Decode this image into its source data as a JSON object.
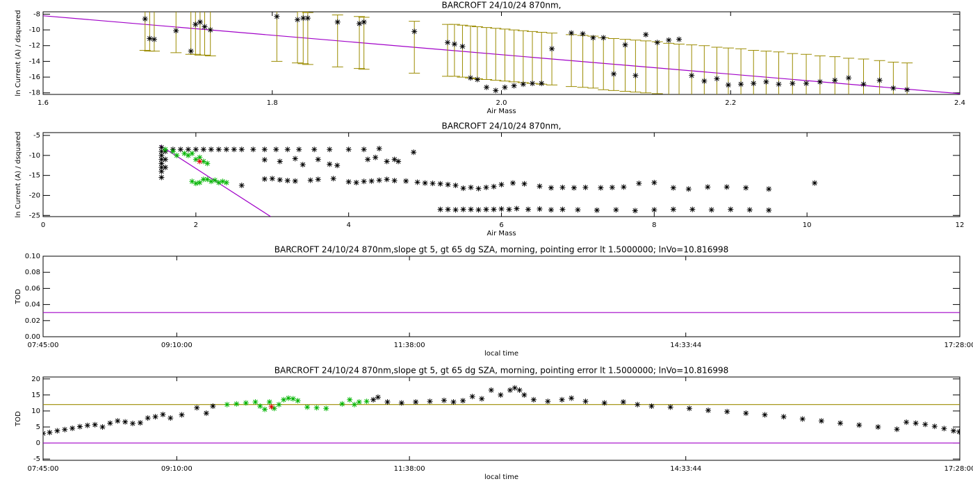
{
  "chart_data": [
    {
      "type": "scatter",
      "title": "BARCROFT 24/10/24 870nm,",
      "xlabel": "Air Mass",
      "ylabel": "ln Current (A) / dsquared",
      "xlim": [
        1.6,
        2.4
      ],
      "ylim": [
        -18.2,
        -7.7
      ],
      "xticks": [
        1.6,
        1.8,
        {
          "value": 2,
          "label": "2.0"
        },
        2.2,
        2.4
      ],
      "yticks": [
        -8,
        -10,
        -12,
        -14,
        -16,
        -18
      ],
      "series": [
        {
          "color": "#000000",
          "marker": "asterisk",
          "x": [
            1.689,
            1.693,
            1.697,
            1.716,
            1.729,
            1.733,
            1.737,
            1.741,
            1.746,
            1.804,
            1.822,
            1.827,
            1.831,
            1.857,
            1.876,
            1.88,
            1.924,
            1.953,
            1.959,
            1.966,
            1.973,
            1.979,
            1.987,
            1.995,
            2.003,
            2.011,
            2.019,
            2.027,
            2.035,
            2.044,
            2.061,
            2.071,
            2.08,
            2.089,
            2.098,
            2.108,
            2.117,
            2.126,
            2.136,
            2.146,
            2.155,
            2.166,
            2.177,
            2.188,
            2.198,
            2.209,
            2.22,
            2.231,
            2.242,
            2.254,
            2.266,
            2.278,
            2.291,
            2.303,
            2.316,
            2.33,
            2.342,
            2.354
          ],
          "values": [
            -8.6,
            -11.1,
            -11.2,
            -10.1,
            -12.7,
            -9.3,
            -9.0,
            -9.6,
            -10.0,
            -8.3,
            -8.7,
            -8.5,
            -8.5,
            -9.0,
            -9.2,
            -9.0,
            -10.2,
            -11.6,
            -11.8,
            -12.1,
            -16.1,
            -16.3,
            -17.3,
            -17.7,
            -17.3,
            -17.1,
            -16.9,
            -16.8,
            -16.8,
            -12.4,
            -10.4,
            -10.5,
            -11.0,
            -11.0,
            -15.6,
            -11.9,
            -15.8,
            -10.6,
            -11.6,
            -11.3,
            -11.2,
            -15.8,
            -16.5,
            -16.2,
            -17.0,
            -16.9,
            -16.8,
            -16.6,
            -16.9,
            -16.8,
            -16.8,
            -16.6,
            -16.4,
            -16.1,
            -16.9,
            -16.4,
            -17.4,
            -17.6
          ]
        }
      ],
      "error_bars": {
        "color": "#9b8b00",
        "centers": [
          -9.3,
          -9.4,
          -9.4,
          -9.6,
          -9.8,
          -9.8,
          -9.9,
          -9.9,
          -10.0,
          -10.7,
          -10.9,
          -11.0,
          -11.1,
          -11.4,
          -11.6,
          -11.7,
          -12.2,
          -12.6,
          -12.6,
          -12.7,
          -12.8,
          -12.9,
          -13.0,
          -13.1,
          -13.2,
          -13.3,
          -13.4,
          -13.5,
          -13.6,
          -13.7,
          -13.9,
          -14.0,
          -14.1,
          -14.3,
          -14.4,
          -14.5,
          -14.6,
          -14.7,
          -14.8,
          -15.0,
          -15.1,
          -15.2,
          -15.3,
          -15.5,
          -15.6,
          -15.7,
          -15.9,
          -16.0,
          -16.1,
          -16.3,
          -16.4,
          -16.6,
          -16.7,
          -16.9,
          -17.0,
          -17.2,
          -17.4,
          -17.5
        ],
        "errors": [
          3.3,
          3.3,
          3.3,
          3.3,
          3.3,
          3.3,
          3.3,
          3.3,
          3.3,
          3.3,
          3.3,
          3.3,
          3.3,
          3.3,
          3.3,
          3.3,
          3.3,
          3.3,
          3.3,
          3.3,
          3.3,
          3.3,
          3.3,
          3.3,
          3.3,
          3.3,
          3.3,
          3.3,
          3.3,
          3.3,
          3.3,
          3.3,
          3.3,
          3.3,
          3.3,
          3.3,
          3.3,
          3.3,
          3.3,
          3.3,
          3.3,
          3.3,
          3.3,
          3.3,
          3.3,
          3.3,
          3.3,
          3.3,
          3.3,
          3.3,
          3.3,
          3.3,
          3.3,
          3.3,
          3.3,
          3.3,
          3.3,
          3.3
        ]
      },
      "lines": [
        {
          "color": "#a000c8",
          "x": [
            1.6,
            2.4
          ],
          "values": [
            -8.2,
            -18.1
          ]
        }
      ]
    },
    {
      "type": "scatter",
      "title": "BARCROFT 24/10/24 870nm,",
      "xlabel": "Air Mass",
      "ylabel": "ln Current (A) / dsquared",
      "xlim": [
        0,
        12
      ],
      "ylim": [
        -25.3,
        -4.3
      ],
      "xticks": [
        0,
        2,
        4,
        6,
        8,
        10,
        12
      ],
      "yticks": [
        -5,
        -10,
        -15,
        -20,
        -25
      ],
      "series": [
        {
          "color": "#000000",
          "marker": "asterisk",
          "x": [
            1.55,
            1.55,
            1.55,
            1.55,
            1.55,
            1.55,
            1.55,
            1.55,
            1.6,
            1.6,
            1.6,
            1.7,
            1.8,
            1.9,
            2.0,
            2.1,
            2.2,
            2.3,
            2.4,
            2.5,
            2.6,
            2.75,
            2.9,
            3.05,
            3.2,
            3.35,
            3.55,
            3.75,
            4.0,
            4.2,
            4.4,
            4.85,
            2.9,
            3.1,
            3.3,
            3.4,
            3.6,
            3.75,
            3.85,
            4.25,
            4.35,
            4.5,
            4.6,
            4.65,
            2.6,
            2.9,
            3.0,
            3.1,
            3.2,
            3.3,
            3.5,
            3.6,
            3.8,
            4.0,
            4.1,
            4.2,
            4.3,
            4.4,
            4.5,
            4.6,
            4.75,
            4.9,
            5.0,
            5.1,
            5.2,
            5.3,
            5.4,
            5.5,
            5.6,
            5.7,
            5.8,
            5.9,
            6.0,
            6.15,
            6.3,
            6.5,
            6.65,
            6.8,
            6.95,
            7.1,
            7.3,
            7.45,
            7.6,
            7.8,
            8.0,
            8.25,
            8.45,
            8.7,
            8.95,
            9.2,
            9.5,
            10.1,
            5.2,
            5.3,
            5.4,
            5.5,
            5.6,
            5.7,
            5.8,
            5.9,
            6.0,
            6.1,
            6.2,
            6.35,
            6.5,
            6.65,
            6.8,
            7.0,
            7.25,
            7.5,
            7.75,
            8.0,
            8.25,
            8.5,
            8.75,
            9.0,
            9.25,
            9.5
          ],
          "values": [
            -8,
            -9,
            -10,
            -11,
            -12,
            -13,
            -14,
            -15.5,
            -9,
            -11,
            -13,
            -8.5,
            -8.5,
            -8.5,
            -8.5,
            -8.5,
            -8.5,
            -8.5,
            -8.5,
            -8.5,
            -8.5,
            -8.5,
            -8.5,
            -8.5,
            -8.5,
            -8.5,
            -8.5,
            -8.5,
            -8.5,
            -8.5,
            -8.3,
            -9.2,
            -11.1,
            -11.5,
            -10.8,
            -12.3,
            -11.0,
            -12.2,
            -12.5,
            -11.0,
            -10.5,
            -11.5,
            -11.0,
            -11.5,
            -17.5,
            -15.9,
            -15.8,
            -16.1,
            -16.3,
            -16.4,
            -16.2,
            -16.0,
            -15.8,
            -16.6,
            -16.8,
            -16.5,
            -16.4,
            -16.2,
            -16.0,
            -16.3,
            -16.4,
            -16.7,
            -16.9,
            -17.0,
            -17.1,
            -17.3,
            -17.5,
            -18.2,
            -18.0,
            -18.3,
            -18.0,
            -17.8,
            -17.3,
            -16.9,
            -17.1,
            -17.7,
            -18.1,
            -18.0,
            -18.1,
            -18.0,
            -18.1,
            -18.0,
            -17.9,
            -17.0,
            -16.8,
            -18.1,
            -18.4,
            -17.9,
            -17.9,
            -18.1,
            -18.4,
            -16.9,
            -23.5,
            -23.5,
            -23.6,
            -23.5,
            -23.5,
            -23.6,
            -23.5,
            -23.5,
            -23.4,
            -23.5,
            -23.3,
            -23.5,
            -23.4,
            -23.6,
            -23.5,
            -23.6,
            -23.7,
            -23.6,
            -23.8,
            -23.6,
            -23.5,
            -23.5,
            -23.6,
            -23.5,
            -23.6,
            -23.7
          ]
        },
        {
          "color": "#00b400",
          "marker": "asterisk",
          "x": [
            1.6,
            1.7,
            1.75,
            1.85,
            1.9,
            1.95,
            1.95,
            2.0,
            2.0,
            2.05,
            2.05,
            2.1,
            2.1,
            2.15,
            2.15,
            2.2,
            2.25,
            2.3,
            2.35,
            2.4
          ],
          "values": [
            -8.5,
            -9.0,
            -10.0,
            -9.5,
            -10.0,
            -9.5,
            -16.5,
            -17.0,
            -11.0,
            -16.8,
            -10.5,
            -11.5,
            -16.0,
            -12.0,
            -16.0,
            -16.5,
            -16.2,
            -16.8,
            -16.5,
            -16.8
          ]
        },
        {
          "color": "#e00000",
          "marker": "asterisk",
          "x": [
            2.05
          ],
          "values": [
            -11.5
          ]
        }
      ],
      "lines": [
        {
          "color": "#a000c8",
          "x": [
            1.53,
            2.98
          ],
          "values": [
            -7.5,
            -25.3
          ]
        }
      ]
    },
    {
      "type": "line",
      "title": "BARCROFT 24/10/24 870nm,slope gt 5, gt 65 dg SZA, morning, pointing error lt 1.5000000; lnVo=10.816998",
      "xlabel": "local time",
      "ylabel": "TOD",
      "xlim": [
        7.75,
        17.4667
      ],
      "ylim": [
        0,
        0.1
      ],
      "xticks": [
        {
          "value": 7.75,
          "label": "07:45:00"
        },
        {
          "value": 9.1667,
          "label": "09:10:00"
        },
        {
          "value": 11.6333,
          "label": "11:38:00"
        },
        {
          "value": 14.5622,
          "label": "14:33:44"
        },
        {
          "value": 17.4667,
          "label": "17:28:00"
        }
      ],
      "yticks": [
        {
          "value": 0,
          "label": "0.00"
        },
        {
          "value": 0.02,
          "label": "0.02"
        },
        {
          "value": 0.04,
          "label": "0.04"
        },
        {
          "value": 0.06,
          "label": "0.06"
        },
        {
          "value": 0.08,
          "label": "0.08"
        },
        {
          "value": 0.1,
          "label": "0.10"
        }
      ],
      "lines": [
        {
          "color": "#a000c8",
          "x": [
            7.75,
            17.4667
          ],
          "values": [
            0.03,
            0.03
          ]
        }
      ]
    },
    {
      "type": "scatter",
      "title": "BARCROFT 24/10/24 870nm,slope gt 5, gt 65 dg SZA, morning, pointing error lt 1.5000000; lnVo=10.816998",
      "xlabel": "local time",
      "ylabel": "TOD",
      "xlim": [
        7.75,
        17.4667
      ],
      "ylim": [
        -5.4,
        20.6
      ],
      "xticks": [
        {
          "value": 7.75,
          "label": "07:45:00"
        },
        {
          "value": 9.1667,
          "label": "09:10:00"
        },
        {
          "value": 11.6333,
          "label": "11:38:00"
        },
        {
          "value": 14.5622,
          "label": "14:33:44"
        },
        {
          "value": 17.4667,
          "label": "17:28:00"
        }
      ],
      "yticks": [
        -5,
        0,
        5,
        10,
        15,
        20
      ],
      "series": [
        {
          "color": "#000000",
          "marker": "asterisk",
          "x": [
            7.75,
            7.82,
            7.9,
            7.98,
            8.06,
            8.14,
            8.22,
            8.3,
            8.38,
            8.46,
            8.54,
            8.62,
            8.7,
            8.78,
            8.86,
            8.94,
            9.02,
            9.1,
            9.22,
            9.38,
            9.48,
            9.55,
            11.25,
            11.3,
            11.4,
            11.55,
            11.7,
            11.85,
            12.0,
            12.1,
            12.2,
            12.3,
            12.4,
            12.5,
            12.6,
            12.7,
            12.75,
            12.8,
            12.85,
            12.95,
            13.1,
            13.25,
            13.35,
            13.5,
            13.7,
            13.9,
            14.05,
            14.2,
            14.4,
            14.6,
            14.8,
            15.0,
            15.2,
            15.4,
            15.6,
            15.8,
            16.0,
            16.2,
            16.4,
            16.6,
            16.8,
            16.9,
            17.0,
            17.1,
            17.2,
            17.3,
            17.4,
            17.46
          ],
          "values": [
            3.0,
            3.3,
            3.8,
            4.2,
            4.6,
            5.1,
            5.5,
            5.7,
            5.0,
            6.2,
            6.9,
            6.6,
            6.1,
            6.3,
            7.8,
            8.2,
            8.9,
            7.8,
            8.8,
            11.0,
            9.3,
            11.5,
            13.5,
            14.3,
            12.8,
            12.5,
            12.8,
            13.0,
            13.3,
            12.8,
            13.2,
            14.5,
            13.8,
            16.5,
            15.0,
            16.5,
            17.2,
            16.5,
            15.0,
            13.5,
            13.0,
            13.5,
            14.0,
            13.0,
            12.5,
            12.8,
            12.0,
            11.5,
            11.2,
            10.8,
            10.2,
            9.8,
            9.3,
            8.8,
            8.2,
            7.5,
            6.9,
            6.2,
            5.6,
            5.0,
            4.3,
            6.5,
            6.2,
            5.8,
            5.2,
            4.5,
            3.8,
            3.5
          ]
        },
        {
          "color": "#00b400",
          "marker": "asterisk",
          "x": [
            9.7,
            9.8,
            9.9,
            10.0,
            10.05,
            10.1,
            10.15,
            10.2,
            10.25,
            10.3,
            10.35,
            10.4,
            10.45,
            10.55,
            10.65,
            10.75,
            10.92,
            11.0,
            11.05,
            11.1,
            11.18
          ],
          "values": [
            12,
            12.2,
            12.5,
            12.8,
            11.5,
            10.5,
            12.8,
            10.8,
            12.0,
            13.5,
            14.0,
            13.8,
            13.2,
            11.2,
            11.0,
            10.8,
            12.2,
            13.5,
            12.0,
            12.8,
            13.0
          ]
        },
        {
          "color": "#e00000",
          "marker": "asterisk",
          "x": [
            10.17
          ],
          "values": [
            11.3
          ]
        }
      ],
      "lines": [
        {
          "color": "#9b8b00",
          "x": [
            7.75,
            17.4667
          ],
          "values": [
            12,
            12
          ]
        },
        {
          "color": "#a000c8",
          "x": [
            7.75,
            17.4667
          ],
          "values": [
            0,
            0
          ]
        }
      ]
    }
  ]
}
